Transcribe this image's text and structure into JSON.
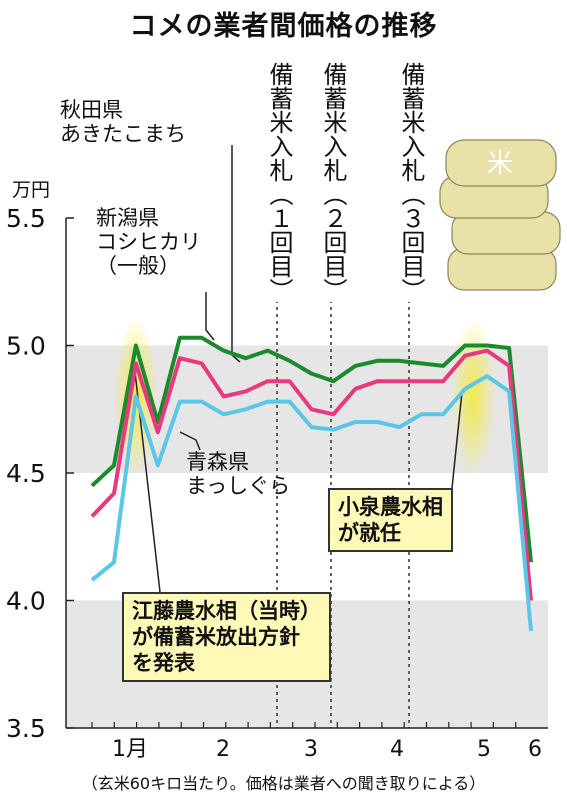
{
  "title": "コメの業者間価格の推移",
  "footnote": "（玄米60キロ当たり。価格は業者への聞き取りによる）",
  "chart_data": {
    "type": "line",
    "yunit": "万円",
    "ylim": [
      3.5,
      5.5
    ],
    "yticks": [
      "3.5",
      "4.0",
      "4.5",
      "5.0",
      "5.5"
    ],
    "xlabels": [
      "1月",
      "2",
      "3",
      "4",
      "5",
      "6"
    ],
    "grid_bands": "gray bands 3.5–4.0 and 4.5–5.0",
    "series": [
      {
        "name": "新潟県\nコシヒカリ\n（一般）",
        "color": "#1a8a2c",
        "values": [
          4.45,
          4.53,
          5.0,
          4.7,
          5.03,
          5.03,
          4.98,
          4.95,
          4.98,
          4.94,
          4.89,
          4.86,
          4.92,
          4.94,
          4.94,
          4.93,
          4.92,
          5.0,
          5.0,
          4.99,
          4.15
        ]
      },
      {
        "name": "秋田県\nあきたこまち",
        "color": "#e8397e",
        "values": [
          4.33,
          4.42,
          4.93,
          4.66,
          4.95,
          4.93,
          4.8,
          4.82,
          4.86,
          4.86,
          4.75,
          4.73,
          4.83,
          4.86,
          4.86,
          4.86,
          4.86,
          4.96,
          4.98,
          4.92,
          4.0
        ]
      },
      {
        "name": "青森県\nまっしぐら",
        "color": "#5cc6e6",
        "values": [
          4.08,
          4.15,
          4.8,
          4.53,
          4.78,
          4.78,
          4.73,
          4.75,
          4.78,
          4.78,
          4.68,
          4.67,
          4.7,
          4.7,
          4.68,
          4.73,
          4.73,
          4.83,
          4.88,
          4.82,
          3.88
        ]
      }
    ],
    "events": [
      {
        "label": "備蓄米入札（１回目）"
      },
      {
        "label": "備蓄米入札（２回目）"
      },
      {
        "label": "備蓄米入札（３回目）"
      }
    ],
    "annotations": [
      "江藤農水相（当時）\nが備蓄米放出方針\nを発表",
      "小泉農水相\nが就任"
    ]
  },
  "colors": {
    "grid_band": "#e6e6e6",
    "highlight": "#f4ea40",
    "callout": "#fff9b8",
    "bags": "#e8e2a8"
  },
  "icon": "rice-bag-stack-icon"
}
